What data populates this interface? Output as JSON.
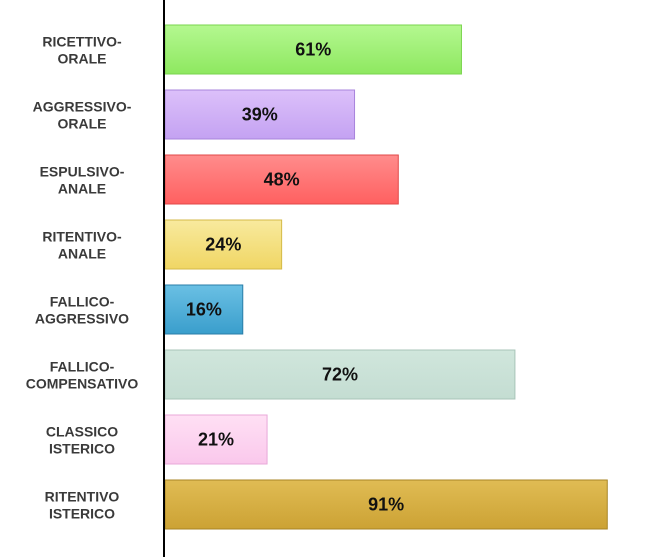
{
  "chart_data": {
    "type": "bar",
    "orientation": "horizontal",
    "categories": [
      [
        "RICETTIVO-",
        "ORALE"
      ],
      [
        "AGGRESSIVO-",
        "ORALE"
      ],
      [
        "ESPULSIVO-",
        "ANALE"
      ],
      [
        "RITENTIVO-",
        "ANALE"
      ],
      [
        "FALLICO-",
        "AGGRESSIVO"
      ],
      [
        "FALLICO-",
        "COMPENSATIVO"
      ],
      [
        "CLASSICO",
        "ISTERICO"
      ],
      [
        "RITENTIVO",
        "ISTERICO"
      ]
    ],
    "values": [
      61,
      39,
      48,
      24,
      16,
      72,
      21,
      91
    ],
    "value_labels": [
      "61%",
      "39%",
      "48%",
      "24%",
      "16%",
      "72%",
      "21%",
      "91%"
    ],
    "colors": [
      [
        "#b4f890",
        "#8ee860",
        "#7ad44e"
      ],
      [
        "#dcc0fa",
        "#c4a2f2",
        "#a884dc"
      ],
      [
        "#ff8c8c",
        "#ff6060",
        "#e04848"
      ],
      [
        "#f8ea9e",
        "#f0d664",
        "#d4ba48"
      ],
      [
        "#6ac0e4",
        "#3a9ecc",
        "#2a7ea8"
      ],
      [
        "#d0e6dc",
        "#c4ddd2",
        "#a8c4b8"
      ],
      [
        "#ffe0f4",
        "#fac8ec",
        "#e8a8d8"
      ],
      [
        "#e0bc54",
        "#cca234",
        "#a88424"
      ]
    ],
    "xlim": [
      0,
      100
    ],
    "grid": false,
    "legend": "none"
  }
}
